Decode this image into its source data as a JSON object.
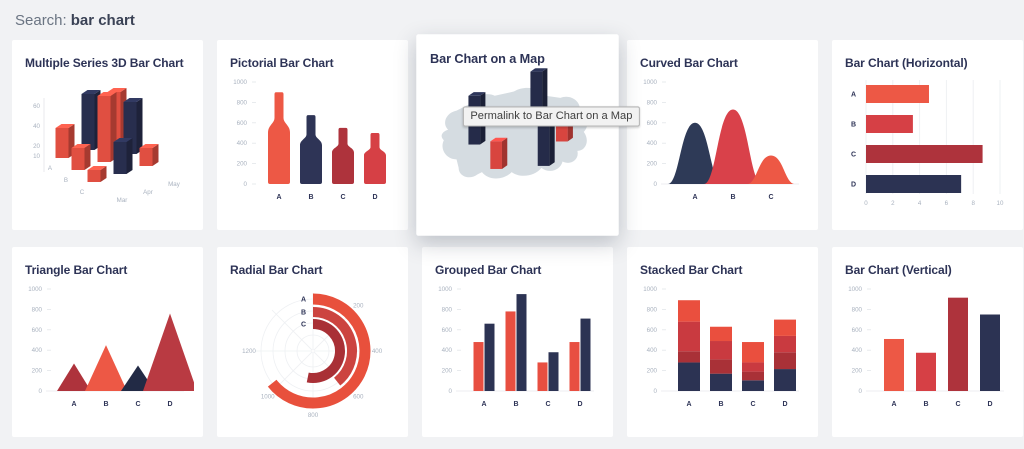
{
  "header": {
    "label": "Search:",
    "query": "bar chart"
  },
  "tooltip": {
    "text": "Permalink to Bar Chart on a Map"
  },
  "palette": {
    "coral": "#ED5845",
    "red": "#D64045",
    "dark_red": "#AE333C",
    "navy": "#2C3353",
    "page_bg": "#f1f2f4",
    "card_bg": "#ffffff",
    "title_text": "#2d3356",
    "axis_text": "#a9b2bf",
    "map_fill": "#D5DCE1"
  },
  "charts": [
    {
      "title": "Multiple Series 3D Bar Chart",
      "type": "bar-3d",
      "y_ticks": [
        60,
        40,
        20,
        10
      ],
      "x_categories": [
        "A",
        "B",
        "C"
      ],
      "depth_categories": [
        "Mar",
        "Apr",
        "May"
      ],
      "bars": [
        {
          "category": "A",
          "month": "Mar",
          "value": 30,
          "color": "#E04F41"
        },
        {
          "category": "A",
          "month": "Apr",
          "value": 56,
          "color": "#282E4E"
        },
        {
          "category": "A",
          "month": "May",
          "value": 50,
          "color": "#E04F41"
        },
        {
          "category": "B",
          "month": "Mar",
          "value": 22,
          "color": "#E04F41"
        },
        {
          "category": "B",
          "month": "Apr",
          "value": 66,
          "color": "#E04F41"
        },
        {
          "category": "B",
          "month": "May",
          "value": 52,
          "color": "#282E4E"
        },
        {
          "category": "C",
          "month": "Mar",
          "value": 12,
          "color": "#E04F41"
        },
        {
          "category": "C",
          "month": "Apr",
          "value": 32,
          "color": "#282E4E"
        },
        {
          "category": "C",
          "month": "May",
          "value": 18,
          "color": "#E04F41"
        }
      ]
    },
    {
      "title": "Pictorial Bar Chart",
      "type": "pictorial",
      "y_ticks": [
        1000,
        800,
        600,
        400,
        200,
        0
      ],
      "y_max": 1000,
      "categories": [
        "A",
        "B",
        "C",
        "D"
      ],
      "values": [
        900,
        675,
        550,
        500
      ],
      "colors": [
        "#ED5845",
        "#2E3456",
        "#AE333C",
        "#D64045"
      ]
    },
    {
      "title": "Bar Chart on a Map",
      "type": "map",
      "map_color": "#D5DCE1",
      "bars": [
        {
          "x": 0.26,
          "y": 0.5,
          "height": 46,
          "color": "#252B49"
        },
        {
          "x": 0.38,
          "y": 0.66,
          "height": 26,
          "color": "#D8453F"
        },
        {
          "x": 0.6,
          "y": 0.3,
          "height": 40,
          "color": "#252B49"
        },
        {
          "x": 0.64,
          "y": 0.64,
          "height": 44,
          "color": "#252B49"
        },
        {
          "x": 0.74,
          "y": 0.48,
          "height": 28,
          "color": "#D8453F"
        }
      ]
    },
    {
      "title": "Curved Bar Chart",
      "type": "curved",
      "y_ticks": [
        1000,
        800,
        600,
        400,
        200,
        0
      ],
      "y_max": 1000,
      "categories": [
        "A",
        "B",
        "C"
      ],
      "values": [
        600,
        730,
        280
      ],
      "colors": [
        "#2E3A57",
        "#D9414A",
        "#ED5845"
      ]
    },
    {
      "title": "Bar Chart (Horizontal)",
      "type": "hbar",
      "x_ticks": [
        0,
        2,
        4,
        6,
        8,
        10
      ],
      "x_max": 10,
      "categories": [
        "A",
        "B",
        "C",
        "D"
      ],
      "values": [
        4.7,
        3.5,
        8.7,
        7.1
      ],
      "colors": [
        "#ED5845",
        "#D64045",
        "#AE333C",
        "#2C3353"
      ]
    },
    {
      "title": "Triangle Bar Chart",
      "type": "triangle",
      "y_ticks": [
        1000,
        800,
        600,
        400,
        200,
        0
      ],
      "y_max": 1000,
      "categories": [
        "A",
        "B",
        "C",
        "D"
      ],
      "values": [
        270,
        450,
        250,
        760
      ],
      "colors": [
        "#AE333C",
        "#ED5845",
        "#222A45",
        "#B93A42"
      ]
    },
    {
      "title": "Radial Bar Chart",
      "type": "radial",
      "categories": [
        "A",
        "B",
        "C"
      ],
      "values": [
        1030,
        630,
        850
      ],
      "colors": [
        "#E8503C",
        "#CC4440",
        "#A93036"
      ],
      "angular_ticks": [
        200,
        400,
        600,
        800,
        1000,
        1200
      ],
      "full_circle_value": 1600
    },
    {
      "title": "Grouped Bar Chart",
      "type": "grouped",
      "y_ticks": [
        1000,
        800,
        600,
        400,
        200,
        0
      ],
      "y_max": 1000,
      "categories": [
        "A",
        "B",
        "C",
        "D"
      ],
      "series": [
        {
          "color": "#E84F41",
          "values": [
            480,
            780,
            280,
            480
          ]
        },
        {
          "color": "#2C3353",
          "values": [
            660,
            950,
            380,
            710
          ]
        }
      ]
    },
    {
      "title": "Stacked Bar Chart",
      "type": "stacked",
      "y_ticks": [
        1000,
        800,
        600,
        400,
        200,
        0
      ],
      "y_max": 1000,
      "categories": [
        "A",
        "B",
        "C",
        "D"
      ],
      "series_bottom_to_top": [
        {
          "color": "#2C3353",
          "values": [
            280,
            170,
            105,
            215
          ]
        },
        {
          "color": "#A93137",
          "values": [
            110,
            140,
            85,
            165
          ]
        },
        {
          "color": "#C93A40",
          "values": [
            290,
            180,
            90,
            160
          ]
        },
        {
          "color": "#EA4F3E",
          "values": [
            210,
            140,
            200,
            160
          ]
        }
      ]
    },
    {
      "title": "Bar Chart (Vertical)",
      "type": "vbar",
      "y_ticks": [
        1000,
        800,
        600,
        400,
        200,
        0
      ],
      "y_max": 1000,
      "categories": [
        "A",
        "B",
        "C",
        "D"
      ],
      "values": [
        510,
        375,
        915,
        750
      ],
      "colors": [
        "#ED5845",
        "#D64045",
        "#AE333C",
        "#2C3353"
      ]
    }
  ]
}
